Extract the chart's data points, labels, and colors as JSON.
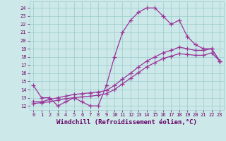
{
  "xlabel": "Windchill (Refroidissement éolien,°C)",
  "bg_color": "#cce8e8",
  "line_color": "#993399",
  "grid_color": "#99cccc",
  "x_ticks": [
    0,
    1,
    2,
    3,
    4,
    5,
    6,
    7,
    8,
    9,
    10,
    11,
    12,
    13,
    14,
    15,
    16,
    17,
    18,
    19,
    20,
    21,
    22,
    23
  ],
  "y_ticks": [
    12,
    13,
    14,
    15,
    16,
    17,
    18,
    19,
    20,
    21,
    22,
    23,
    24
  ],
  "ylim": [
    11.5,
    24.8
  ],
  "xlim": [
    -0.5,
    23.5
  ],
  "line1_x": [
    0,
    1,
    2,
    3,
    4,
    5,
    6,
    7,
    8,
    9,
    10,
    11,
    12,
    13,
    14,
    15,
    16,
    17,
    18,
    19,
    20,
    21,
    22,
    23
  ],
  "line1_y": [
    14.5,
    13.0,
    13.0,
    12.0,
    12.5,
    13.0,
    12.5,
    12.0,
    12.0,
    14.5,
    18.0,
    21.0,
    22.5,
    23.5,
    24.0,
    24.0,
    23.0,
    22.0,
    22.5,
    20.5,
    19.5,
    19.0,
    19.0,
    17.5
  ],
  "line2_x": [
    0,
    1,
    2,
    3,
    4,
    5,
    6,
    7,
    8,
    9,
    10,
    11,
    12,
    13,
    14,
    15,
    16,
    17,
    18,
    19,
    20,
    21,
    22,
    23
  ],
  "line2_y": [
    12.5,
    12.5,
    12.8,
    13.0,
    13.2,
    13.4,
    13.5,
    13.6,
    13.7,
    13.9,
    14.5,
    15.3,
    16.0,
    16.8,
    17.5,
    18.0,
    18.5,
    18.8,
    19.2,
    19.0,
    18.8,
    18.8,
    19.0,
    17.5
  ],
  "line3_x": [
    0,
    1,
    2,
    3,
    4,
    5,
    6,
    7,
    8,
    9,
    10,
    11,
    12,
    13,
    14,
    15,
    16,
    17,
    18,
    19,
    20,
    21,
    22,
    23
  ],
  "line3_y": [
    12.3,
    12.4,
    12.5,
    12.7,
    12.9,
    13.0,
    13.1,
    13.2,
    13.3,
    13.5,
    14.0,
    14.7,
    15.4,
    16.1,
    16.8,
    17.3,
    17.8,
    18.1,
    18.4,
    18.3,
    18.2,
    18.2,
    18.5,
    17.5
  ],
  "marker": "+",
  "markersize": 4,
  "linewidth": 0.9,
  "tick_fontsize": 5.0,
  "xlabel_fontsize": 6.5,
  "tick_color": "#660066"
}
